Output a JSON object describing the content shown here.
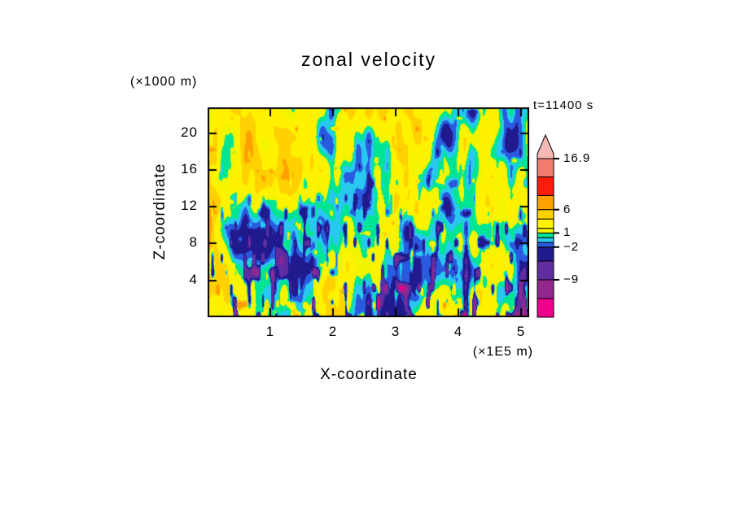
{
  "chart_data": {
    "type": "heatmap",
    "title": "zonal velocity",
    "xlabel": "X-coordinate",
    "ylabel": "Z-coordinate",
    "x_unit": "(×1E5 m)",
    "y_unit": "(×1000 m)",
    "annotation": "t=11400 s",
    "xlim": [
      0,
      5.13
    ],
    "ylim": [
      0,
      22.8
    ],
    "grid": false,
    "legend_position": "right",
    "x_ticks": [
      {
        "value": 1,
        "label": "1"
      },
      {
        "value": 2,
        "label": "2"
      },
      {
        "value": 3,
        "label": "3"
      },
      {
        "value": 4,
        "label": "4"
      },
      {
        "value": 5,
        "label": "5"
      }
    ],
    "y_ticks": [
      {
        "value": 4,
        "label": "4"
      },
      {
        "value": 8,
        "label": "8"
      },
      {
        "value": 12,
        "label": "12"
      },
      {
        "value": 16,
        "label": "16"
      },
      {
        "value": 20,
        "label": "20"
      }
    ],
    "field": {
      "description": "Filled-contour turbulent zonal velocity cross-section: mostly +1 to +4 m/s (yellow/green) aloft with orange maxima, and narrow negative streaks (cyan/blue/navy/purple/magenta) concentrated near the bottom boundary; a deep negative streak near x=4.1E5 m.",
      "levels": [
        -13,
        -9,
        -5,
        -2,
        -1,
        0,
        1,
        2,
        4,
        6,
        9,
        13,
        16.9
      ],
      "colors": [
        "#ec008c",
        "#93278f",
        "#5f2da0",
        "#201a8e",
        "#2a5ade",
        "#29c8f0",
        "#00e593",
        "#f2f400",
        "#fff200",
        "#ffd100",
        "#ffa000",
        "#fb1c0c",
        "#f37c6e",
        "#f5b8b4"
      ],
      "seed": 7,
      "bias": 1.0
    },
    "colorbar": {
      "min": -17,
      "max": 16.9,
      "tick_labels": [
        {
          "value": 16.9,
          "label": "16.9"
        },
        {
          "value": 6,
          "label": "6"
        },
        {
          "value": 1,
          "label": "1"
        },
        {
          "value": -2,
          "label": "−2"
        },
        {
          "value": -9,
          "label": "−9"
        }
      ]
    }
  }
}
